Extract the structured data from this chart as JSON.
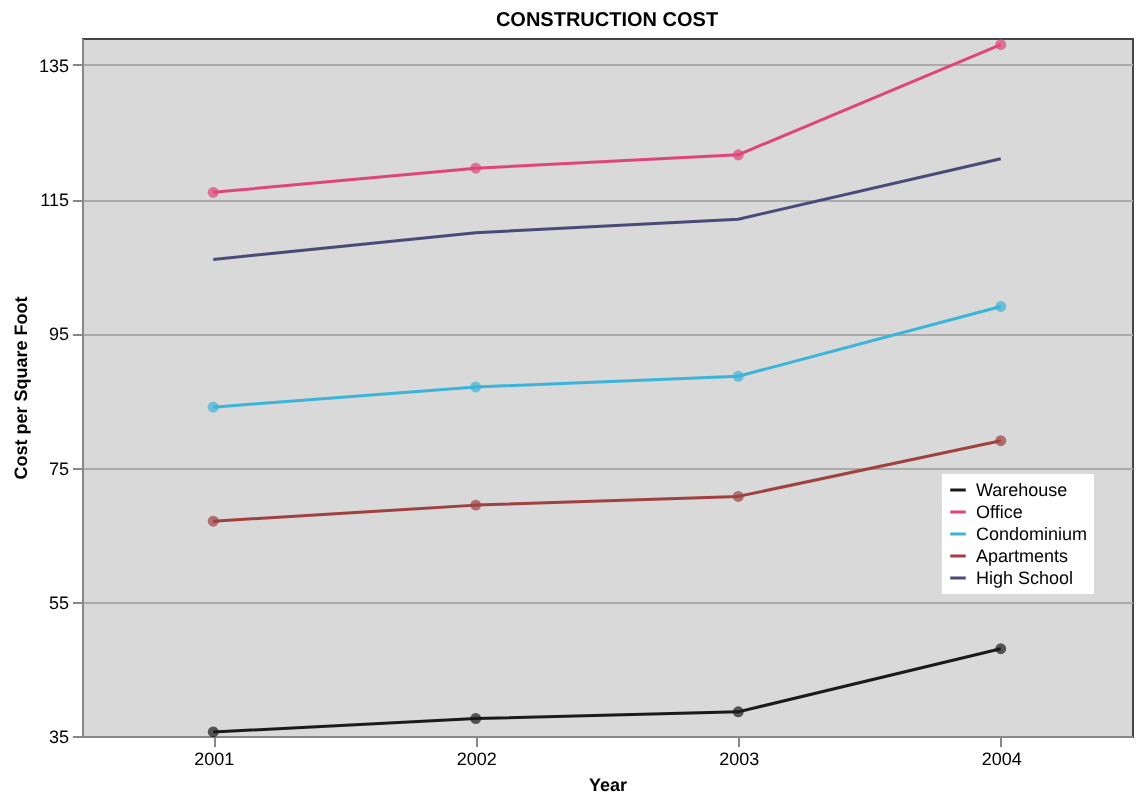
{
  "chart_data": {
    "type": "line",
    "title": "CONSTRUCTION COST",
    "xlabel": "Year",
    "ylabel": "Cost per Square Foot",
    "categories": [
      "2001",
      "2002",
      "2003",
      "2004"
    ],
    "series": [
      {
        "name": "Warehouse",
        "color": "#1a1a1a",
        "marker": "circle",
        "values": [
          35.6,
          37.6,
          38.6,
          48
        ]
      },
      {
        "name": "Office",
        "color": "#e0457a",
        "marker": "circle",
        "values": [
          116,
          119.6,
          121.6,
          138
        ]
      },
      {
        "name": "Condominium",
        "color": "#3ab4d8",
        "marker": "circle",
        "values": [
          84,
          87,
          88.6,
          99
        ]
      },
      {
        "name": "Apartments",
        "color": "#a04040",
        "marker": "circle",
        "values": [
          67,
          69.4,
          70.7,
          79
        ]
      },
      {
        "name": "High School",
        "color": "#4a4a78",
        "marker": "none",
        "values": [
          106,
          110,
          112,
          121
        ]
      }
    ],
    "ylim": [
      35,
      139
    ],
    "yticks": [
      35,
      55,
      75,
      95,
      115,
      135
    ],
    "grid": "y",
    "legend": "right",
    "line_style": "solid"
  }
}
